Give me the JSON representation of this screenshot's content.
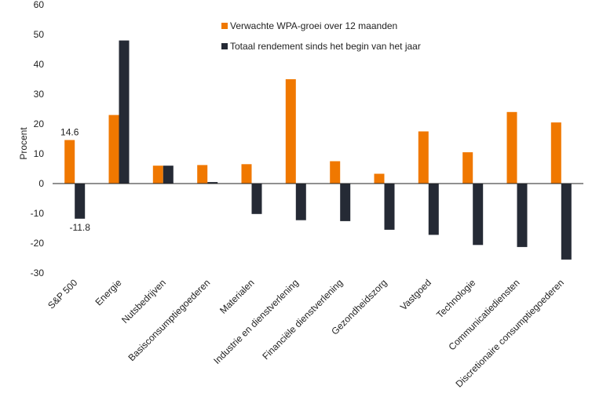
{
  "chart_data": {
    "type": "bar",
    "ylabel": "Procent",
    "ylim": [
      -30,
      60
    ],
    "yticks": [
      60,
      50,
      40,
      30,
      20,
      10,
      0,
      -10,
      -20,
      -30
    ],
    "grid": false,
    "legend_position": "top-right",
    "categories": [
      "S&P 500",
      "Energie",
      "Nutsbedrijven",
      "Basisconsumptiegoederen",
      "Materialen",
      "Industrie en dienstverlening",
      "Financiële dienstverlening",
      "Gezondheidszorg",
      "Vastgoed",
      "Technologie",
      "Communicatiediensten",
      "Discretionaire consumptiegoederen"
    ],
    "series": [
      {
        "name": "Verwachte WPA-groei over 12 maanden",
        "color": "#f07800",
        "values": [
          14.6,
          23,
          6,
          6.2,
          6.5,
          35,
          7.5,
          3.3,
          17.5,
          10.5,
          24,
          20.5
        ]
      },
      {
        "name": "Totaal rendement sinds het begin van het jaar",
        "color": "#252a35",
        "values": [
          -11.8,
          48,
          6,
          0.5,
          -10.2,
          -12.3,
          -12.6,
          -15.5,
          -17.2,
          -20.6,
          -21.3,
          -25.5
        ]
      }
    ],
    "data_labels": [
      {
        "series": 0,
        "index": 0,
        "text": "14.6"
      },
      {
        "series": 1,
        "index": 0,
        "text": "-11.8"
      }
    ]
  }
}
